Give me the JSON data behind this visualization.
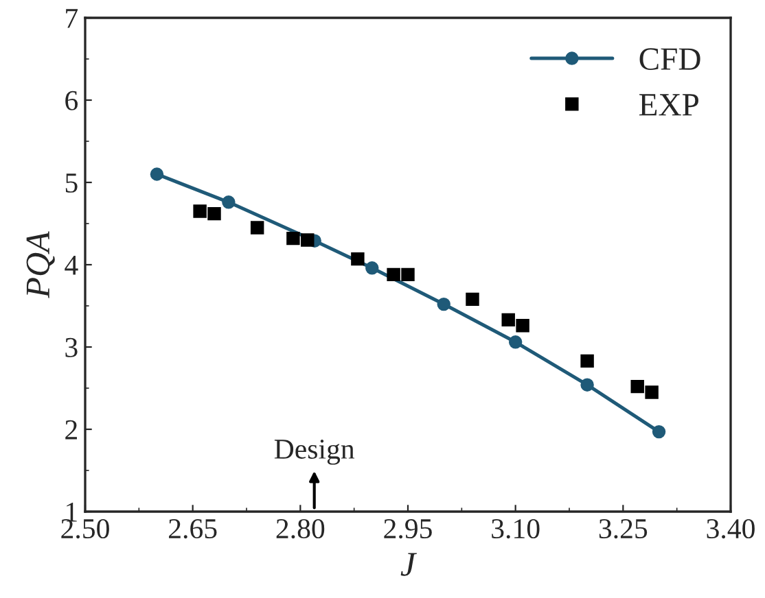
{
  "chart_data": {
    "type": "line",
    "xlabel": "J",
    "ylabel": "PQA",
    "xlim": [
      2.5,
      3.4
    ],
    "xticks": [
      {
        "value": 2.5,
        "label": "2.50"
      },
      {
        "value": 2.65,
        "label": "2.65"
      },
      {
        "value": 2.8,
        "label": "2.80"
      },
      {
        "value": 2.95,
        "label": "2.95"
      },
      {
        "value": 3.1,
        "label": "3.10"
      },
      {
        "value": 3.25,
        "label": "3.25"
      },
      {
        "value": 3.4,
        "label": "3.40"
      }
    ],
    "ylim": [
      1,
      7
    ],
    "yticks": [
      1,
      2,
      3,
      4,
      5,
      6,
      7
    ],
    "grid": false,
    "legend": "top right",
    "annotations": [
      "Design"
    ],
    "series": [
      {
        "name": "CFD",
        "marker": "circle",
        "color": "#1f5a78",
        "x": [
          2.6,
          2.7,
          2.82,
          2.9,
          3.0,
          3.1,
          3.2,
          3.3
        ],
        "values": [
          5.1,
          4.76,
          4.29,
          3.96,
          3.52,
          3.06,
          2.54,
          1.97
        ]
      },
      {
        "name": "EXP",
        "type": "scatter",
        "marker": "square",
        "color": "#000000",
        "x": [
          2.66,
          2.68,
          2.74,
          2.79,
          2.81,
          2.88,
          2.93,
          2.95,
          3.04,
          3.09,
          3.11,
          3.2,
          3.27,
          3.29
        ],
        "values": [
          4.65,
          4.62,
          4.45,
          4.32,
          4.3,
          4.07,
          3.88,
          3.88,
          3.58,
          3.33,
          3.26,
          2.83,
          2.52,
          2.45
        ]
      }
    ]
  }
}
